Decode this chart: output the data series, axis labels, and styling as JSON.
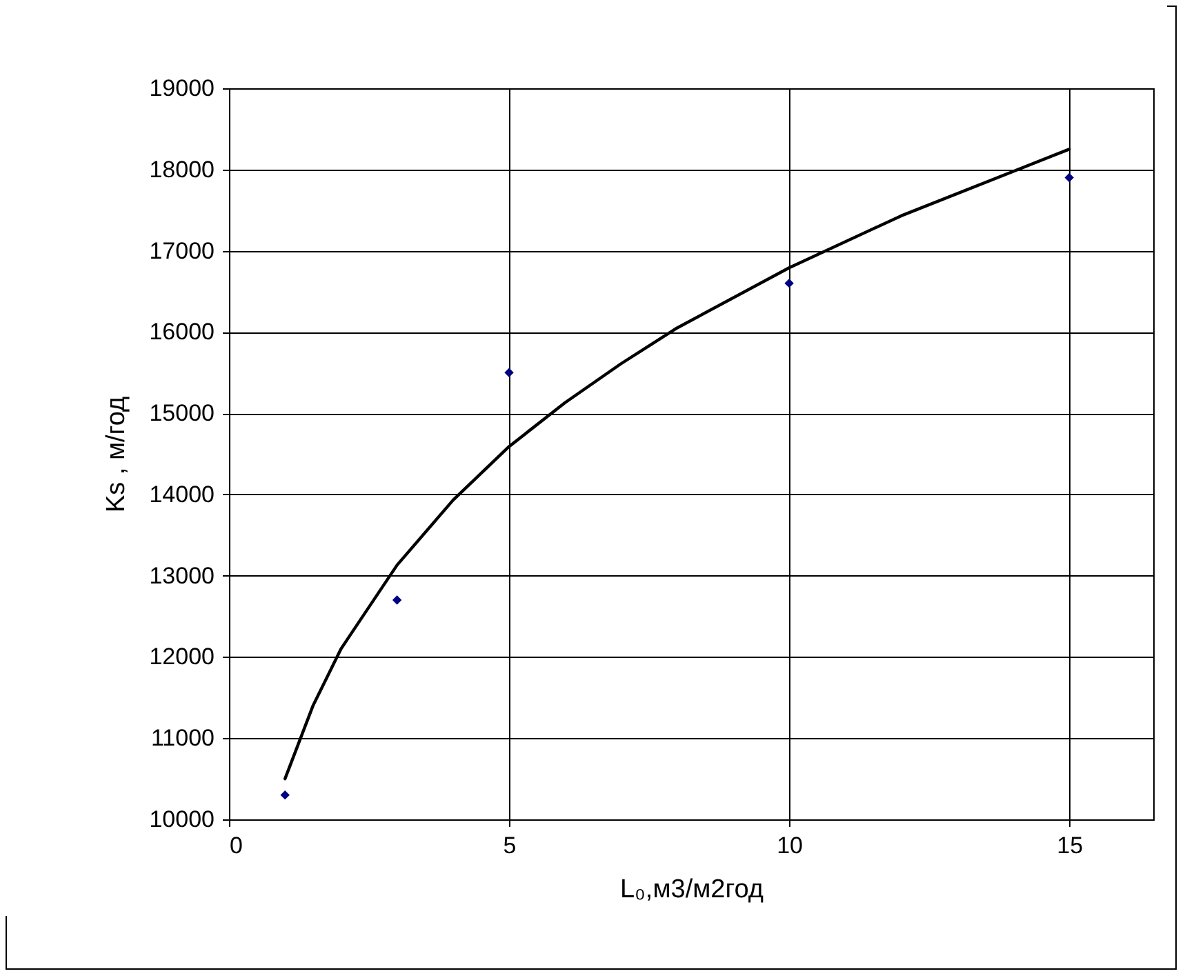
{
  "chart_data": {
    "type": "scatter",
    "xlabel": "L₀,м3/м2год",
    "ylabel": "Ks , м/год",
    "xlim": [
      0,
      16.5
    ],
    "xticks": [
      0,
      5,
      10,
      15
    ],
    "ylim": [
      10000,
      19000
    ],
    "yticks": [
      10000,
      11000,
      12000,
      13000,
      14000,
      15000,
      16000,
      17000,
      18000,
      19000
    ],
    "grid": true,
    "series": [
      {
        "color": "#000080",
        "marker": "diamond",
        "x": [
          1,
          3,
          5,
          10,
          15
        ],
        "values": [
          10300,
          12700,
          15500,
          16600,
          17900
        ]
      },
      {
        "type": "line",
        "color": "#000000",
        "line_style": "solid",
        "x": [
          1,
          1.5,
          2,
          3,
          4,
          5,
          6,
          7,
          8,
          10,
          12,
          15
        ],
        "values": [
          10500,
          11400,
          12100,
          13130,
          13930,
          14590,
          15130,
          15610,
          16050,
          16790,
          17430,
          18250
        ]
      }
    ]
  }
}
